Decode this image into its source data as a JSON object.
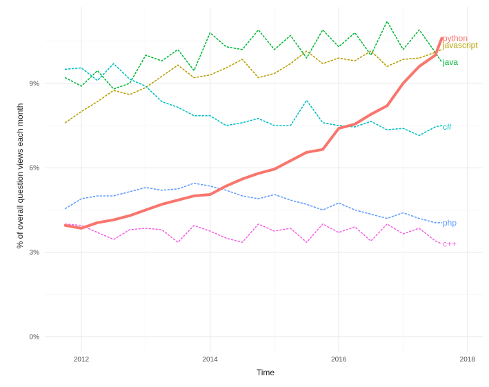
{
  "chart_data": {
    "type": "line",
    "title": "",
    "xlabel": "Time",
    "ylabel": "% of overall question views each month",
    "xlim": [
      2011.45,
      2018.25
    ],
    "ylim": [
      -0.25,
      11.6
    ],
    "x_ticks": [
      2012,
      2014,
      2016,
      2018
    ],
    "x_tick_labels": [
      "2012",
      "2014",
      "2016",
      "2018"
    ],
    "y_ticks": [
      0,
      3,
      6,
      9
    ],
    "y_tick_labels": [
      "0%",
      "3%",
      "6%",
      "9%"
    ],
    "grid": true,
    "legend": "direct labels at line ends",
    "x": [
      2011.75,
      2012.0,
      2012.25,
      2012.5,
      2012.75,
      2013.0,
      2013.25,
      2013.5,
      2013.75,
      2014.0,
      2014.25,
      2014.5,
      2014.75,
      2015.0,
      2015.25,
      2015.5,
      2015.75,
      2016.0,
      2016.25,
      2016.5,
      2016.75,
      2017.0,
      2017.25,
      2017.5,
      2017.6
    ],
    "series": [
      {
        "name": "python",
        "color": "#F8766D",
        "style": "solid",
        "values": [
          3.95,
          3.85,
          4.05,
          4.15,
          4.3,
          4.5,
          4.7,
          4.85,
          5.0,
          5.05,
          5.35,
          5.6,
          5.8,
          5.95,
          6.25,
          6.55,
          6.65,
          7.4,
          7.55,
          7.9,
          8.2,
          9.0,
          9.6,
          10.0,
          10.6
        ]
      },
      {
        "name": "javascript",
        "color": "#B79F00",
        "style": "dotted",
        "values": [
          7.6,
          8.0,
          8.35,
          8.75,
          8.6,
          8.85,
          9.25,
          9.65,
          9.2,
          9.3,
          9.55,
          9.85,
          9.2,
          9.35,
          9.7,
          10.15,
          9.7,
          9.9,
          9.8,
          10.15,
          9.6,
          9.85,
          9.9,
          10.1,
          10.2
        ]
      },
      {
        "name": "java",
        "color": "#00BA38",
        "style": "dotted",
        "values": [
          9.2,
          8.9,
          9.45,
          8.8,
          9.0,
          10.0,
          9.8,
          10.2,
          9.45,
          10.8,
          10.3,
          10.2,
          10.9,
          10.2,
          10.7,
          9.9,
          10.9,
          10.3,
          10.8,
          10.0,
          11.2,
          10.2,
          10.9,
          10.1,
          9.75
        ]
      },
      {
        "name": "c#",
        "color": "#00BFC4",
        "style": "dotted",
        "values": [
          9.5,
          9.55,
          9.1,
          9.7,
          9.15,
          8.9,
          8.35,
          8.15,
          7.85,
          7.85,
          7.5,
          7.6,
          7.75,
          7.5,
          7.5,
          8.4,
          7.6,
          7.5,
          7.45,
          7.65,
          7.35,
          7.4,
          7.15,
          7.45,
          7.5
        ]
      },
      {
        "name": "php",
        "color": "#619CFF",
        "style": "dotted",
        "values": [
          4.55,
          4.9,
          5.0,
          5.0,
          5.15,
          5.3,
          5.2,
          5.25,
          5.45,
          5.35,
          5.2,
          5.0,
          4.9,
          5.05,
          4.85,
          4.7,
          4.5,
          4.75,
          4.5,
          4.35,
          4.2,
          4.4,
          4.2,
          4.05,
          4.05
        ]
      },
      {
        "name": "c++",
        "color": "#F564E3",
        "style": "dotted",
        "values": [
          4.0,
          3.95,
          3.7,
          3.45,
          3.8,
          3.85,
          3.8,
          3.35,
          3.95,
          3.75,
          3.5,
          3.35,
          4.0,
          3.75,
          3.85,
          3.35,
          4.0,
          3.7,
          3.9,
          3.4,
          4.0,
          3.65,
          3.85,
          3.4,
          3.3
        ]
      }
    ],
    "end_labels": [
      {
        "name": "python",
        "y": 10.6
      },
      {
        "name": "javascript",
        "y": 10.35
      },
      {
        "name": "java",
        "y": 9.75
      },
      {
        "name": "c#",
        "y": 7.45
      },
      {
        "name": "php",
        "y": 4.05
      },
      {
        "name": "c++",
        "y": 3.3
      }
    ]
  }
}
